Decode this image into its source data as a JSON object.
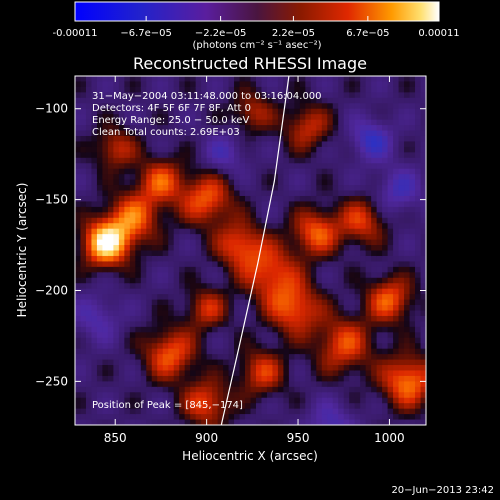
{
  "chart_data": {
    "type": "heatmap",
    "title": "Reconstructed RHESSI Image",
    "xlabel": "Heliocentric X (arcsec)",
    "ylabel": "Heliocentric Y (arcsec)",
    "xlim": [
      828,
      1020
    ],
    "ylim": [
      -274,
      -82
    ],
    "x_ticks": [
      850,
      900,
      950,
      1000
    ],
    "y_ticks": [
      -100,
      -150,
      -200,
      -250
    ],
    "colorbar": {
      "min": -0.00011,
      "max": 0.00011,
      "tick_values": [
        -0.00011,
        -6.7e-05,
        -2.2e-05,
        2.2e-05,
        6.7e-05,
        0.00011
      ],
      "tick_labels": [
        "-0.00011",
        "−6.7e−05",
        "−2.2e−05",
        "2.2e−05",
        "6.7e−05",
        "0.00011"
      ],
      "units_label": "(photons cm⁻² s⁻¹ asec⁻²)"
    },
    "annotations": [
      "31−May−2004 03:11:48.000 to 03:16:04.000",
      "Detectors: 4F 5F 6F 7F 8F, Att 0",
      "Energy Range: 25.0 − 50.0 keV",
      "Clean    Total counts: 2.69E+03"
    ],
    "peak_label": "Position of Peak = [845,−174]",
    "peak": [
      845,
      -174
    ],
    "limb_curve": [
      [
        908,
        -274
      ],
      [
        918,
        -230
      ],
      [
        928,
        -185
      ],
      [
        937,
        -140
      ],
      [
        945,
        -82
      ]
    ],
    "sources": [
      {
        "x": 845,
        "y": -174,
        "amp": 1.0,
        "s": 9
      },
      {
        "x": 860,
        "y": -160,
        "amp": 0.6,
        "s": 10
      },
      {
        "x": 875,
        "y": -140,
        "amp": 0.55,
        "s": 9
      },
      {
        "x": 900,
        "y": -150,
        "amp": 0.6,
        "s": 10
      },
      {
        "x": 918,
        "y": -175,
        "amp": 0.55,
        "s": 9
      },
      {
        "x": 935,
        "y": -190,
        "amp": 0.55,
        "s": 11
      },
      {
        "x": 960,
        "y": -168,
        "amp": 0.6,
        "s": 9
      },
      {
        "x": 985,
        "y": -162,
        "amp": 0.5,
        "s": 9
      },
      {
        "x": 948,
        "y": -210,
        "amp": 0.6,
        "s": 10
      },
      {
        "x": 975,
        "y": -230,
        "amp": 0.55,
        "s": 11
      },
      {
        "x": 1000,
        "y": -205,
        "amp": 0.6,
        "s": 9
      },
      {
        "x": 1010,
        "y": -250,
        "amp": 0.7,
        "s": 10
      },
      {
        "x": 880,
        "y": -235,
        "amp": 0.6,
        "s": 10
      },
      {
        "x": 900,
        "y": -210,
        "amp": 0.45,
        "s": 8
      },
      {
        "x": 900,
        "y": -262,
        "amp": 0.55,
        "s": 9
      },
      {
        "x": 930,
        "y": -245,
        "amp": 0.5,
        "s": 9
      },
      {
        "x": 850,
        "y": -122,
        "amp": 0.45,
        "s": 8
      },
      {
        "x": 955,
        "y": -110,
        "amp": 0.45,
        "s": 9
      },
      {
        "x": 925,
        "y": -102,
        "amp": 0.4,
        "s": 8
      },
      {
        "x": 990,
        "y": -117,
        "amp": -0.45,
        "s": 8
      },
      {
        "x": 1005,
        "y": -145,
        "amp": -0.35,
        "s": 9
      },
      {
        "x": 840,
        "y": -215,
        "amp": -0.3,
        "s": 9
      },
      {
        "x": 968,
        "y": -275,
        "amp": -0.35,
        "s": 9
      },
      {
        "x": 910,
        "y": -125,
        "amp": -0.3,
        "s": 8
      }
    ]
  },
  "footer": {
    "timestamp": "20−Jun−2013 23:42"
  }
}
